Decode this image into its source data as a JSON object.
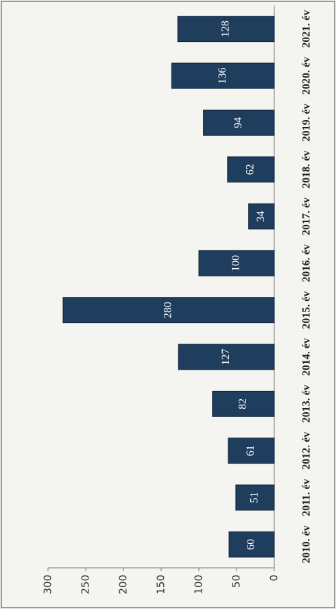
{
  "chart_data": {
    "type": "bar",
    "categories": [
      "2010. év",
      "2011. év",
      "2012. év",
      "2013. év",
      "2014. év",
      "2015. év",
      "2016. év",
      "2017. év",
      "2018. év",
      "2019. év",
      "2020. év",
      "2021. év"
    ],
    "values": [
      60,
      51,
      61,
      82,
      127,
      280,
      100,
      34,
      62,
      94,
      136,
      128
    ],
    "color": "#1f3d5c",
    "ylim": [
      0,
      300
    ],
    "yticks": [
      0,
      50,
      100,
      150,
      200,
      250,
      300
    ],
    "grid": false
  }
}
